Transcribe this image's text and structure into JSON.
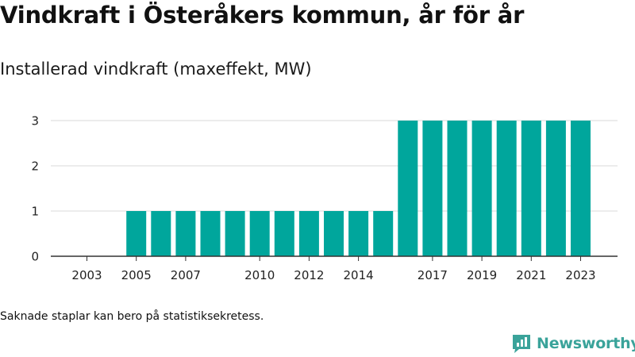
{
  "title": "Vindkraft i Österåkers kommun, år för år",
  "subtitle": "Installerad vindkraft (maxeffekt, MW)",
  "note": "Saknade staplar kan bero på statistiksekretess.",
  "brand": {
    "name": "Newsworthy",
    "color": "#3aa39a",
    "icon": "bar-chart-speech-bubble-icon"
  },
  "colors": {
    "bar": "#00a69c",
    "grid": "#d9d9d9",
    "axis": "#333333"
  },
  "chart_data": {
    "type": "bar",
    "title": "Vindkraft i Österåkers kommun, år för år",
    "subtitle": "Installerad vindkraft (maxeffekt, MW)",
    "xlabel": "",
    "ylabel": "",
    "ylim": [
      0,
      3
    ],
    "yticks": [
      0,
      1,
      2,
      3
    ],
    "grid": true,
    "categories": [
      "2003",
      "2004",
      "2005",
      "2006",
      "2007",
      "2008",
      "2009",
      "2010",
      "2011",
      "2012",
      "2013",
      "2014",
      "2015",
      "2016",
      "2017",
      "2018",
      "2019",
      "2020",
      "2021",
      "2022",
      "2023"
    ],
    "values": [
      0,
      0,
      1,
      1,
      1,
      1,
      1,
      1,
      1,
      1,
      1,
      1,
      1,
      3,
      3,
      3,
      3,
      3,
      3,
      3,
      3
    ],
    "xtick_labels": [
      "2003",
      "2005",
      "2007",
      "2010",
      "2012",
      "2014",
      "2017",
      "2019",
      "2021",
      "2023"
    ]
  }
}
